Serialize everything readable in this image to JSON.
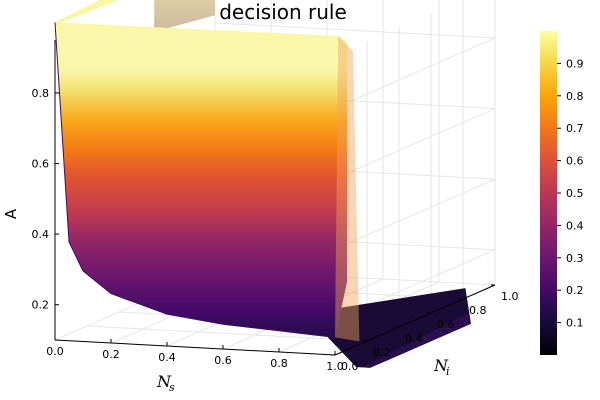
{
  "chart_data": {
    "type": "surface",
    "title": "decision rule",
    "xlabel": "N",
    "xlabel_sub": "s",
    "ylabel": "N",
    "ylabel_sub": "i",
    "zlabel": "A",
    "xlim": [
      0,
      1
    ],
    "ylim": [
      0,
      1
    ],
    "zlim": [
      0.1,
      0.95
    ],
    "x_ticks": [
      "0.0",
      "0.2",
      "0.4",
      "0.6",
      "0.8",
      "1.0"
    ],
    "y_ticks": [
      "0.0",
      "0.2",
      "0.4",
      "0.6",
      "0.8",
      "1.0"
    ],
    "z_ticks": [
      "0.2",
      "0.4",
      "0.6",
      "0.8"
    ],
    "colorbar_ticks": [
      "0.1",
      "0.2",
      "0.3",
      "0.4",
      "0.5",
      "0.6",
      "0.7",
      "0.8",
      "0.9"
    ],
    "colorbar_range": [
      0,
      1
    ],
    "colormap": "inferno",
    "grid": true,
    "surface_profile": [
      {
        "x": 0.0,
        "z": 1.0
      },
      {
        "x": 0.05,
        "z": 0.38
      },
      {
        "x": 0.1,
        "z": 0.3
      },
      {
        "x": 0.2,
        "z": 0.24
      },
      {
        "x": 0.4,
        "z": 0.19
      },
      {
        "x": 0.6,
        "z": 0.17
      },
      {
        "x": 0.8,
        "z": 0.16
      },
      {
        "x": 0.9,
        "z": 0.155
      },
      {
        "x": 1.0,
        "z": 0.15
      }
    ],
    "surface_wall": {
      "y": 1.0,
      "z": 1.0
    },
    "surface_floor_z": 0.02
  }
}
